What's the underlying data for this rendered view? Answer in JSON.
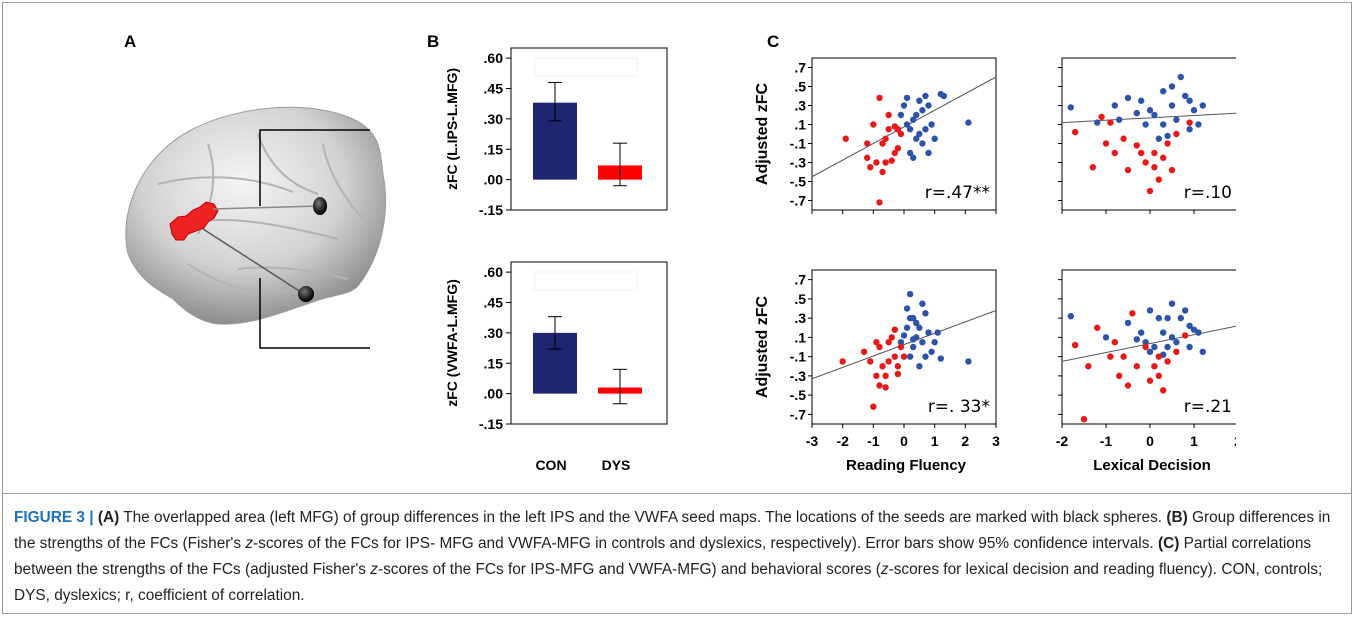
{
  "panels": {
    "a_label": "A",
    "b_label": "B",
    "c_label": "C"
  },
  "colors": {
    "con": "#1f2470",
    "dys": "#ff0000",
    "scatter_con": "#2f53a7",
    "scatter_dys": "#e61a1a",
    "region": "#ee2222"
  },
  "chart_data": [
    {
      "type": "bar",
      "ylabel": "zFC (L.IPS-L.MFG)",
      "yticks": [
        ".60",
        ".45",
        ".30",
        ".15",
        ".00",
        "-.15"
      ],
      "ylim": [
        -0.15,
        0.65
      ],
      "categories": [
        "CON",
        "DYS"
      ],
      "values": [
        0.38,
        0.07
      ],
      "ci_low": [
        0.29,
        -0.03
      ],
      "ci_high": [
        0.48,
        0.18
      ]
    },
    {
      "type": "bar",
      "ylabel": "zFC (VWFA-L.MFG)",
      "yticks": [
        ".60",
        ".45",
        ".30",
        ".15",
        ".00",
        "-.15"
      ],
      "ylim": [
        -0.15,
        0.65
      ],
      "categories": [
        "CON",
        "DYS"
      ],
      "values": [
        0.3,
        0.03
      ],
      "ci_low": [
        0.22,
        -0.05
      ],
      "ci_high": [
        0.38,
        0.12
      ],
      "xlabels": [
        "CON",
        "DYS"
      ]
    },
    {
      "type": "scatter",
      "ylabel": "Adjusted zFC",
      "yticks": [
        ".7",
        ".5",
        ".3",
        ".1",
        "-.1",
        "-.3",
        "-.5",
        "-.7"
      ],
      "xlim": [
        -3,
        3
      ],
      "ylim": [
        -0.8,
        0.8
      ],
      "r_text": "r=.47**",
      "fit": [
        [
          -3.0,
          -0.45
        ],
        [
          3.0,
          0.6
        ]
      ],
      "con": [
        [
          0.2,
          0.05
        ],
        [
          0.4,
          0.2
        ],
        [
          0.5,
          0.35
        ],
        [
          0.7,
          0.4
        ],
        [
          0.3,
          0.15
        ],
        [
          0.6,
          0.25
        ],
        [
          0.1,
          0.1
        ],
        [
          0.8,
          0.3
        ],
        [
          1.2,
          0.42
        ],
        [
          0.9,
          0.1
        ],
        [
          0.4,
          -0.05
        ],
        [
          0.6,
          -0.1
        ],
        [
          0.2,
          -0.2
        ],
        [
          -0.1,
          0.2
        ],
        [
          0.0,
          0.3
        ],
        [
          0.7,
          0.05
        ],
        [
          1.0,
          -0.05
        ],
        [
          0.3,
          -0.25
        ],
        [
          0.5,
          0.0
        ],
        [
          1.3,
          0.4
        ],
        [
          2.1,
          0.12
        ],
        [
          0.8,
          -0.2
        ],
        [
          -0.2,
          0.05
        ],
        [
          0.1,
          0.38
        ]
      ],
      "dys": [
        [
          -1.9,
          -0.05
        ],
        [
          -1.2,
          -0.1
        ],
        [
          -1.0,
          0.1
        ],
        [
          -0.8,
          0.38
        ],
        [
          -0.5,
          0.2
        ],
        [
          -0.6,
          -0.05
        ],
        [
          -0.3,
          -0.2
        ],
        [
          -0.2,
          0.05
        ],
        [
          -0.9,
          -0.3
        ],
        [
          -1.1,
          -0.35
        ],
        [
          -0.7,
          -0.4
        ],
        [
          -0.4,
          -0.28
        ],
        [
          -0.1,
          0.0
        ],
        [
          -0.2,
          -0.15
        ],
        [
          -0.5,
          0.05
        ],
        [
          -0.8,
          -0.72
        ],
        [
          -1.2,
          -0.25
        ],
        [
          -0.6,
          -0.3
        ],
        [
          -0.3,
          0.08
        ],
        [
          -0.7,
          -0.1
        ]
      ]
    },
    {
      "type": "scatter",
      "yticks": [],
      "xlim": [
        -2,
        2
      ],
      "ylim": [
        -0.8,
        0.8
      ],
      "r_text": "r=.10",
      "fit": [
        [
          -2.0,
          0.12
        ],
        [
          2.0,
          0.22
        ]
      ],
      "con": [
        [
          -1.8,
          0.28
        ],
        [
          -1.2,
          0.12
        ],
        [
          -0.8,
          0.3
        ],
        [
          -0.5,
          0.38
        ],
        [
          -0.2,
          0.35
        ],
        [
          0.1,
          0.2
        ],
        [
          0.3,
          0.1
        ],
        [
          0.5,
          0.3
        ],
        [
          0.7,
          0.6
        ],
        [
          0.8,
          0.4
        ],
        [
          0.6,
          0.15
        ],
        [
          0.9,
          0.05
        ],
        [
          1.0,
          0.25
        ],
        [
          1.2,
          0.3
        ],
        [
          0.4,
          -0.02
        ],
        [
          0.2,
          -0.05
        ],
        [
          -0.1,
          0.1
        ],
        [
          0.0,
          0.25
        ],
        [
          0.5,
          0.5
        ],
        [
          -0.3,
          0.22
        ],
        [
          -0.7,
          0.15
        ],
        [
          0.9,
          0.35
        ],
        [
          1.1,
          0.1
        ],
        [
          0.3,
          0.45
        ]
      ],
      "dys": [
        [
          -1.7,
          0.02
        ],
        [
          -1.1,
          0.18
        ],
        [
          -1.3,
          -0.35
        ],
        [
          -0.9,
          0.12
        ],
        [
          -0.6,
          -0.05
        ],
        [
          -0.3,
          -0.12
        ],
        [
          -0.1,
          -0.3
        ],
        [
          0.1,
          -0.2
        ],
        [
          0.3,
          -0.25
        ],
        [
          0.5,
          -0.38
        ],
        [
          0.2,
          -0.48
        ],
        [
          0.0,
          -0.6
        ],
        [
          -0.5,
          -0.38
        ],
        [
          -0.8,
          -0.2
        ],
        [
          0.4,
          -0.1
        ],
        [
          0.6,
          0.0
        ],
        [
          -0.2,
          -0.2
        ],
        [
          0.9,
          0.12
        ],
        [
          -1.0,
          -0.1
        ],
        [
          0.1,
          -0.35
        ]
      ]
    },
    {
      "type": "scatter",
      "ylabel": "Adjusted zFC",
      "yticks": [
        ".7",
        ".5",
        ".3",
        ".1",
        "-.1",
        "-.3",
        "-.5",
        "-.7"
      ],
      "xlim": [
        -3,
        3
      ],
      "ylim": [
        -0.8,
        0.8
      ],
      "xticks": [
        "-3",
        "-2",
        "-1",
        "0",
        "1",
        "2",
        "3"
      ],
      "xlabel": "Reading Fluency",
      "r_text": "r=. 33*",
      "fit": [
        [
          -3.0,
          -0.33
        ],
        [
          3.0,
          0.38
        ]
      ],
      "con": [
        [
          0.2,
          0.55
        ],
        [
          0.1,
          0.4
        ],
        [
          0.3,
          0.3
        ],
        [
          0.5,
          0.2
        ],
        [
          0.4,
          0.1
        ],
        [
          0.6,
          0.05
        ],
        [
          0.7,
          0.35
        ],
        [
          0.8,
          0.15
        ],
        [
          0.3,
          0.0
        ],
        [
          0.0,
          0.12
        ],
        [
          0.9,
          -0.05
        ],
        [
          1.1,
          0.15
        ],
        [
          0.2,
          -0.1
        ],
        [
          0.5,
          -0.2
        ],
        [
          1.2,
          -0.12
        ],
        [
          2.1,
          -0.15
        ],
        [
          0.7,
          -0.1
        ],
        [
          0.4,
          0.25
        ],
        [
          0.1,
          0.2
        ],
        [
          -0.1,
          0.05
        ],
        [
          0.6,
          0.45
        ],
        [
          0.3,
          0.08
        ],
        [
          1.0,
          0.05
        ],
        [
          0.2,
          0.3
        ]
      ],
      "dys": [
        [
          -2.0,
          -0.15
        ],
        [
          -1.3,
          -0.05
        ],
        [
          -1.1,
          -0.15
        ],
        [
          -0.9,
          0.05
        ],
        [
          -0.8,
          0.0
        ],
        [
          -0.7,
          -0.2
        ],
        [
          -0.6,
          -0.3
        ],
        [
          -0.5,
          -0.15
        ],
        [
          -0.4,
          0.1
        ],
        [
          -0.3,
          -0.1
        ],
        [
          -0.2,
          -0.2
        ],
        [
          -0.8,
          -0.4
        ],
        [
          -1.0,
          -0.62
        ],
        [
          -0.6,
          -0.42
        ],
        [
          -0.1,
          0.0
        ],
        [
          0.0,
          -0.1
        ],
        [
          -0.9,
          -0.3
        ],
        [
          -0.3,
          0.18
        ],
        [
          -0.5,
          0.05
        ],
        [
          -0.2,
          -0.28
        ]
      ]
    },
    {
      "type": "scatter",
      "yticks": [],
      "xlim": [
        -2,
        2
      ],
      "ylim": [
        -0.8,
        0.8
      ],
      "xticks": [
        "-2",
        "-1",
        "0",
        "1",
        "2"
      ],
      "xlabel": "Lexical Decision",
      "r_text": "r=.21",
      "fit": [
        [
          -2.0,
          -0.15
        ],
        [
          2.0,
          0.22
        ]
      ],
      "con": [
        [
          -1.8,
          0.32
        ],
        [
          -1.0,
          0.1
        ],
        [
          -0.5,
          0.25
        ],
        [
          -0.3,
          0.08
        ],
        [
          0.0,
          0.38
        ],
        [
          0.2,
          0.3
        ],
        [
          0.3,
          0.15
        ],
        [
          0.4,
          0.0
        ],
        [
          0.5,
          0.1
        ],
        [
          0.6,
          0.05
        ],
        [
          0.8,
          0.38
        ],
        [
          0.9,
          0.22
        ],
        [
          1.0,
          0.18
        ],
        [
          1.2,
          -0.05
        ],
        [
          0.7,
          0.3
        ],
        [
          0.5,
          0.45
        ],
        [
          0.1,
          0.0
        ],
        [
          0.3,
          -0.08
        ],
        [
          -0.2,
          0.15
        ],
        [
          0.0,
          -0.05
        ],
        [
          0.9,
          0.0
        ],
        [
          1.1,
          0.15
        ],
        [
          -0.1,
          0.05
        ],
        [
          0.4,
          0.3
        ]
      ],
      "dys": [
        [
          -1.7,
          0.02
        ],
        [
          -1.2,
          0.2
        ],
        [
          -1.4,
          -0.2
        ],
        [
          -0.9,
          -0.1
        ],
        [
          -0.7,
          -0.3
        ],
        [
          -0.4,
          0.35
        ],
        [
          -0.3,
          -0.2
        ],
        [
          -0.1,
          0.0
        ],
        [
          0.1,
          -0.2
        ],
        [
          0.2,
          -0.3
        ],
        [
          0.3,
          -0.45
        ],
        [
          0.0,
          -0.35
        ],
        [
          -0.5,
          -0.4
        ],
        [
          -0.6,
          -0.1
        ],
        [
          0.4,
          -0.15
        ],
        [
          0.6,
          -0.05
        ],
        [
          0.8,
          0.12
        ],
        [
          -1.5,
          -0.75
        ],
        [
          -0.8,
          0.05
        ],
        [
          0.2,
          -0.1
        ]
      ]
    }
  ],
  "caption": {
    "label": "FIGURE 3 |",
    "a_tag": "(A)",
    "a_text": " The overlapped area (left MFG) of group differences in the left IPS and the VWFA seed maps. The locations of the seeds are marked with black spheres. ",
    "b_tag": "(B)",
    "b_text_1": " Group differences in the strengths of the FCs (Fisher's ",
    "b_italic": "z",
    "b_text_2": "-scores of the FCs for IPS- MFG and VWFA-MFG in controls and dyslexics, respectively). Error bars show 95% confidence intervals. ",
    "c_tag": "(C)",
    "c_text_1": " Partial correlations between the strengths of the FCs (adjusted Fisher's ",
    "c_italic_1": "z",
    "c_text_2": "-scores of the FCs for IPS-MFG and VWFA-MFG) and behavioral scores (",
    "c_italic_2": "z",
    "c_text_3": "-scores for lexical decision and reading fluency). CON, controls; DYS, dyslexics; r, coefficient of correlation."
  }
}
